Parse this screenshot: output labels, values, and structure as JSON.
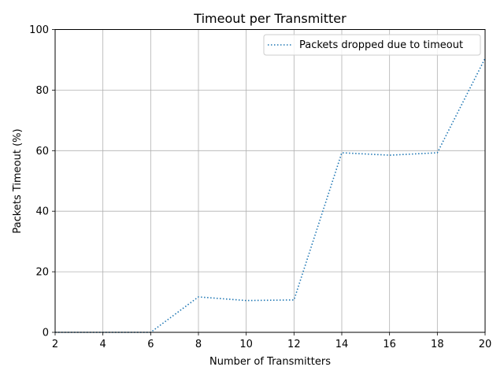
{
  "chart_data": {
    "type": "line",
    "title": "Timeout per Transmitter",
    "xlabel": "Number of Transmitters",
    "ylabel": "Packets Timeout (%)",
    "xlim": [
      2,
      20
    ],
    "ylim": [
      0,
      100
    ],
    "xticks": [
      2,
      4,
      6,
      8,
      10,
      12,
      14,
      16,
      18,
      20
    ],
    "yticks": [
      0,
      20,
      40,
      60,
      80,
      100
    ],
    "grid": true,
    "legend_position": "top-right",
    "series": [
      {
        "name": "Packets dropped due to timeout",
        "color": "#1f77b4",
        "line_style": "dotted",
        "x": [
          2,
          4,
          6,
          8,
          10,
          12,
          14,
          16,
          18,
          20
        ],
        "values": [
          0,
          0,
          0,
          11.7,
          10.5,
          10.7,
          59.3,
          58.5,
          59.3,
          90.5
        ]
      }
    ]
  }
}
